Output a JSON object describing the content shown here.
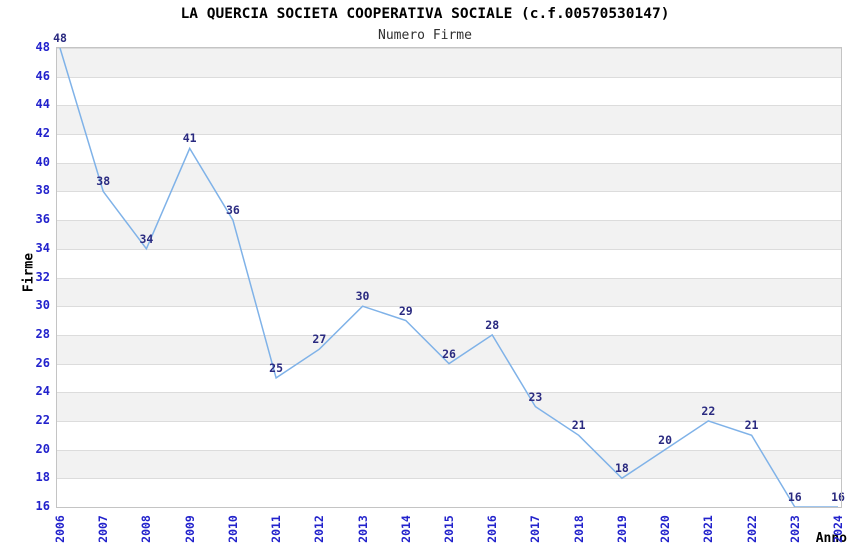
{
  "chart_data": {
    "type": "line",
    "title": "LA QUERCIA SOCIETA COOPERATIVA SOCIALE (c.f.00570530147)",
    "subtitle": "Numero Firme",
    "xlabel": "Anno",
    "ylabel": "Firme",
    "categories": [
      "2006",
      "2007",
      "2008",
      "2009",
      "2010",
      "2011",
      "2012",
      "2013",
      "2014",
      "2015",
      "2016",
      "2017",
      "2018",
      "2019",
      "2020",
      "2021",
      "2022",
      "2023",
      "2024"
    ],
    "series": [
      {
        "name": "Numero Firme",
        "values": [
          48,
          38,
          34,
          41,
          36,
          25,
          27,
          30,
          29,
          26,
          28,
          23,
          21,
          18,
          20,
          22,
          21,
          16,
          16
        ]
      }
    ],
    "ylim": [
      16,
      48
    ],
    "y_ticks": [
      48,
      46,
      44,
      42,
      40,
      38,
      36,
      34,
      32,
      30,
      28,
      26,
      24,
      22,
      20,
      18,
      16
    ],
    "grid": true,
    "legend": false,
    "data_labels_shown": true,
    "colors": {
      "line": "#7fb2e8",
      "axis_tick_labels": "#2222cc",
      "data_labels": "#2a2a80",
      "stripe": "#f2f2f2",
      "gridline": "#dcdcdc",
      "plot_border": "#c4c4c4",
      "title_text": "#000000"
    }
  }
}
